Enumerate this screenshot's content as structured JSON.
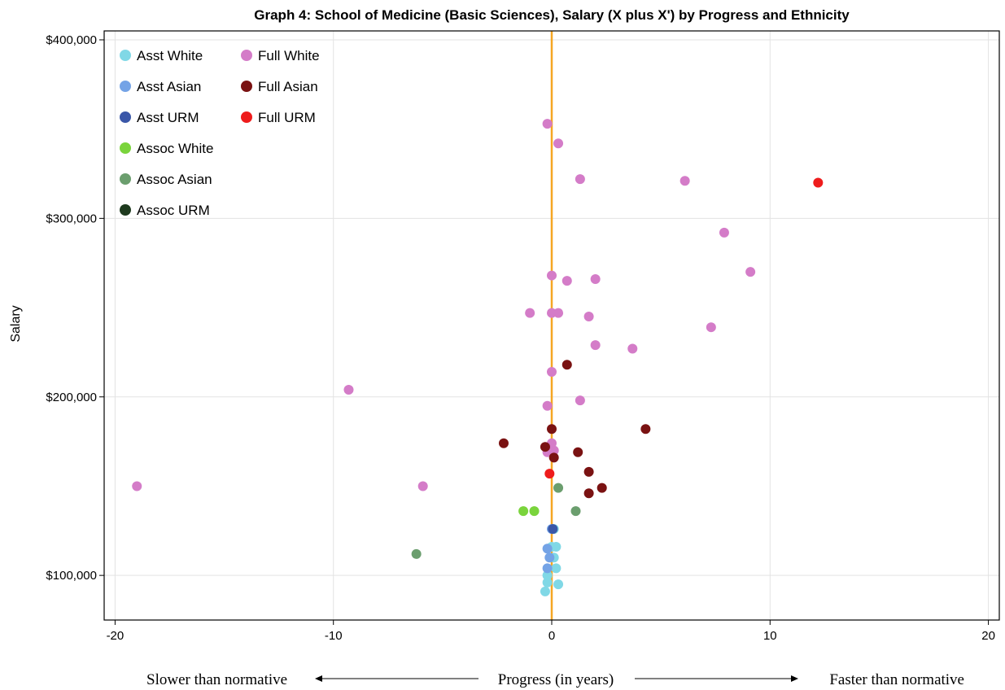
{
  "chart_data": {
    "type": "scatter",
    "title": "Graph 4: School of Medicine (Basic Sciences), Salary (X plus X') by Progress and Ethnicity",
    "xlabel": "Progress (in years)",
    "ylabel": "Salary",
    "x_annotation_left": "Slower than normative",
    "x_annotation_right": "Faster than normative",
    "xlim": [
      -20.5,
      20.5
    ],
    "ylim": [
      75000,
      405000
    ],
    "x_ticks": [
      -20,
      -10,
      0,
      10,
      20
    ],
    "x_tick_labels": [
      "-20",
      "-10",
      "0",
      "10",
      "20"
    ],
    "y_ticks": [
      100000,
      200000,
      300000,
      400000
    ],
    "y_tick_labels": [
      "$100,000",
      "$200,000",
      "$300,000",
      "$400,000"
    ],
    "grid": true,
    "reference_line": {
      "x": 0,
      "color": "#f5a623"
    },
    "legend_position": "top-left",
    "series": [
      {
        "name": "Asst White",
        "color": "#80d8e6",
        "points": [
          [
            0.0,
            116000
          ],
          [
            0.2,
            116000
          ],
          [
            0.1,
            110000
          ],
          [
            0.2,
            104000
          ],
          [
            -0.2,
            100000
          ],
          [
            -0.2,
            96000
          ],
          [
            0.3,
            95000
          ],
          [
            -0.3,
            91000
          ],
          [
            0.1,
            126000
          ]
        ]
      },
      {
        "name": "Asst Asian",
        "color": "#74a3e6",
        "points": [
          [
            -0.2,
            115000
          ],
          [
            -0.1,
            110000
          ],
          [
            -0.2,
            104000
          ],
          [
            0.0,
            126000
          ]
        ]
      },
      {
        "name": "Asst URM",
        "color": "#3a57a8",
        "points": [
          [
            0.05,
            126000
          ]
        ]
      },
      {
        "name": "Assoc White",
        "color": "#7ad43c",
        "points": [
          [
            -1.3,
            136000
          ],
          [
            -0.8,
            136000
          ]
        ]
      },
      {
        "name": "Assoc Asian",
        "color": "#6b9e6e",
        "points": [
          [
            0.3,
            149000
          ],
          [
            1.1,
            136000
          ],
          [
            -6.2,
            112000
          ]
        ]
      },
      {
        "name": "Assoc URM",
        "color": "#1e3a1e",
        "points": []
      },
      {
        "name": "Full White",
        "color": "#d47cc8",
        "points": [
          [
            -0.2,
            353000
          ],
          [
            0.3,
            342000
          ],
          [
            1.3,
            322000
          ],
          [
            6.1,
            321000
          ],
          [
            7.9,
            292000
          ],
          [
            9.1,
            270000
          ],
          [
            0.0,
            268000
          ],
          [
            0.7,
            265000
          ],
          [
            2.0,
            266000
          ],
          [
            -1.0,
            247000
          ],
          [
            0.0,
            247000
          ],
          [
            0.3,
            247000
          ],
          [
            1.7,
            245000
          ],
          [
            7.3,
            239000
          ],
          [
            2.0,
            229000
          ],
          [
            3.7,
            227000
          ],
          [
            0.0,
            214000
          ],
          [
            -9.3,
            204000
          ],
          [
            1.3,
            198000
          ],
          [
            -0.2,
            195000
          ],
          [
            0.0,
            174000
          ],
          [
            0.1,
            170000
          ],
          [
            -0.2,
            169000
          ],
          [
            -19.0,
            150000
          ],
          [
            -5.9,
            150000
          ]
        ]
      },
      {
        "name": "Full Asian",
        "color": "#7a1212",
        "points": [
          [
            0.7,
            218000
          ],
          [
            4.3,
            182000
          ],
          [
            0.0,
            182000
          ],
          [
            -2.2,
            174000
          ],
          [
            -0.3,
            172000
          ],
          [
            1.2,
            169000
          ],
          [
            0.1,
            166000
          ],
          [
            1.7,
            158000
          ],
          [
            2.3,
            149000
          ],
          [
            1.7,
            146000
          ]
        ]
      },
      {
        "name": "Full URM",
        "color": "#ee1c1c",
        "points": [
          [
            12.2,
            320000
          ],
          [
            -0.1,
            157000
          ]
        ]
      }
    ]
  }
}
